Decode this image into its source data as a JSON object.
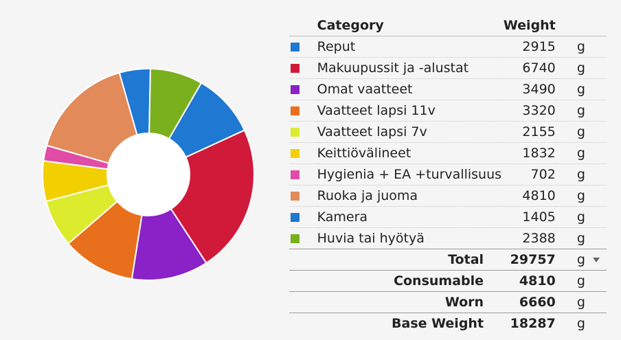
{
  "chart_data": {
    "type": "pie",
    "donut": true,
    "categories": [
      "Reput",
      "Makuupussit ja -alustat",
      "Omat vaatteet",
      "Vaatteet lapsi 11v",
      "Vaatteet lapsi 7v",
      "Keittiövälineet",
      "Hygienia + EA +turvallisuus",
      "Ruoka ja juoma",
      "Kamera",
      "Huvia tai hyötyä"
    ],
    "values": [
      2915,
      6740,
      3490,
      3320,
      2155,
      1832,
      702,
      4810,
      1405,
      2388
    ],
    "colors": [
      "#1f78d1",
      "#d11a3a",
      "#8a22c8",
      "#e8701c",
      "#dceb2e",
      "#f2cf00",
      "#e04ca6",
      "#e28a5a",
      "#1f78d1",
      "#7ab01e"
    ]
  },
  "table": {
    "header": {
      "category": "Category",
      "weight": "Weight"
    },
    "unit": "g",
    "rows": [
      {
        "name": "Reput",
        "weight": "2915",
        "color": "#1f78d1"
      },
      {
        "name": "Makuupussit ja -alustat",
        "weight": "6740",
        "color": "#d11a3a"
      },
      {
        "name": "Omat vaatteet",
        "weight": "3490",
        "color": "#8a22c8"
      },
      {
        "name": "Vaatteet lapsi 11v",
        "weight": "3320",
        "color": "#e8701c"
      },
      {
        "name": "Vaatteet lapsi 7v",
        "weight": "2155",
        "color": "#dceb2e"
      },
      {
        "name": "Keittiövälineet",
        "weight": "1832",
        "color": "#f2cf00"
      },
      {
        "name": "Hygienia + EA +turvallisuus",
        "weight": "702",
        "color": "#e04ca6"
      },
      {
        "name": "Ruoka ja juoma",
        "weight": "4810",
        "color": "#e28a5a"
      },
      {
        "name": "Kamera",
        "weight": "1405",
        "color": "#1f78d1"
      },
      {
        "name": "Huvia tai hyötyä",
        "weight": "2388",
        "color": "#7ab01e"
      }
    ],
    "totals": [
      {
        "label": "Total",
        "value": "29757",
        "dropdown": true
      },
      {
        "label": "Consumable",
        "value": "4810"
      },
      {
        "label": "Worn",
        "value": "6660"
      },
      {
        "label": "Base Weight",
        "value": "18287"
      }
    ],
    "dropdown_icon": "caret-down-icon"
  }
}
